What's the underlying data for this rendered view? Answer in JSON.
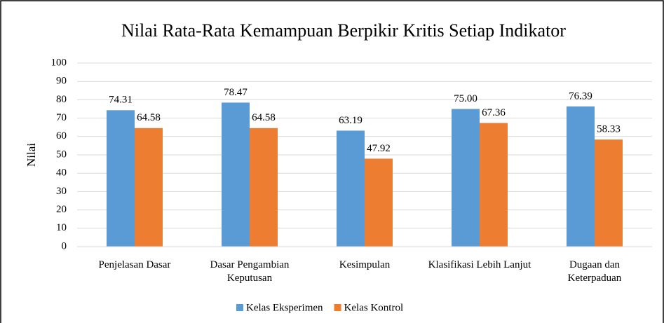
{
  "chart_data": {
    "type": "bar",
    "title": "Nilai Rata-Rata Kemampuan Berpikir Kritis Setiap Indikator",
    "y_label": "Nilai",
    "categories": [
      "Penjelasan Dasar",
      "Dasar Pengambian Keputusan",
      "Kesimpulan",
      "Klasifikasi Lebih Lanjut",
      "Dugaan dan Keterpaduan"
    ],
    "series": [
      {
        "name": "Kelas Eksperimen",
        "color": "#5b9bd5",
        "values": [
          74.31,
          78.47,
          63.19,
          75,
          76.39
        ],
        "value_labels": [
          "74.31",
          "78.47",
          "63.19",
          "75.00",
          "76.39"
        ]
      },
      {
        "name": "Kelas Kontrol",
        "color": "#ed7d31",
        "values": [
          64.58,
          64.58,
          47.92,
          67.36,
          58.33
        ],
        "value_labels": [
          "64.58",
          "64.58",
          "47.92",
          "67.36",
          "58.33"
        ]
      }
    ],
    "ylim": [
      0,
      100
    ],
    "yticks": [
      0,
      10,
      20,
      30,
      40,
      50,
      60,
      70,
      80,
      90,
      100
    ],
    "grid": true,
    "legend": "bottom"
  }
}
